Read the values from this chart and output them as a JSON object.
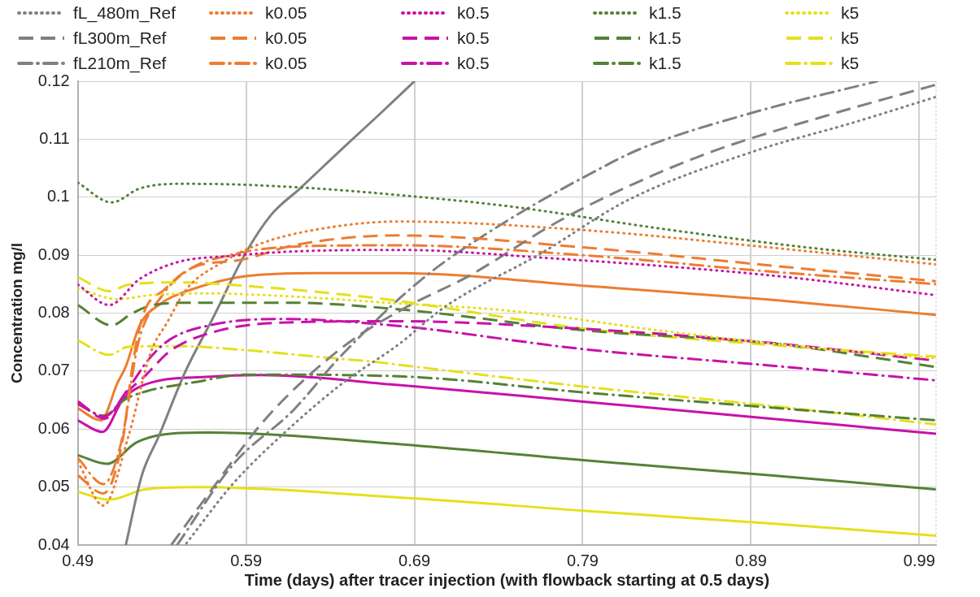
{
  "chart_data": {
    "type": "line",
    "xlabel": "Time (days) after tracer injection (with flowback starting at 0.5 days)",
    "ylabel": "Concentration mg/l",
    "xlim": [
      0.49,
      1.0
    ],
    "xticks": [
      0.49,
      0.59,
      0.69,
      0.79,
      0.89,
      0.99
    ],
    "ylim": [
      0.04,
      0.12
    ],
    "yticks": [
      0.04,
      0.05,
      0.06,
      0.07,
      0.08,
      0.09,
      0.1,
      0.11,
      0.12
    ],
    "grid": true,
    "legend": "top",
    "marker": "none",
    "series": [
      {
        "name": "fL_480m_Ref",
        "color": "#808080",
        "line_style": "dotted",
        "x": [
          0.5545,
          0.5823,
          0.6152,
          0.6477,
          0.6806,
          0.7092,
          0.7646,
          0.8176,
          0.8927,
          0.95,
          1.0
        ],
        "values": [
          0.0403,
          0.0506,
          0.06,
          0.068,
          0.0746,
          0.0813,
          0.0902,
          0.0996,
          0.108,
          0.1128,
          0.1173
        ]
      },
      {
        "name": "k0.05",
        "color": "#ed7d31",
        "line_style": "dotted",
        "x": [
          0.49,
          0.5052,
          0.52,
          0.5333,
          0.5431,
          0.5545,
          0.5761,
          0.5987,
          0.6315,
          0.6806,
          0.7916,
          0.902,
          1.0
        ],
        "values": [
          0.0544,
          0.0468,
          0.0587,
          0.0732,
          0.0784,
          0.0841,
          0.0888,
          0.092,
          0.0944,
          0.0958,
          0.0943,
          0.0913,
          0.0884
        ]
      },
      {
        "name": "k0.5",
        "color": "#c812a8",
        "line_style": "dotted",
        "x": [
          0.49,
          0.5087,
          0.5268,
          0.5494,
          0.5823,
          0.6152,
          0.6806,
          0.769,
          0.902,
          1.0
        ],
        "values": [
          0.0849,
          0.0814,
          0.0859,
          0.0888,
          0.0899,
          0.0906,
          0.0909,
          0.0895,
          0.0865,
          0.0831
        ]
      },
      {
        "name": "k1.5",
        "color": "#548235",
        "line_style": "dotted",
        "x": [
          0.49,
          0.5101,
          0.5268,
          0.5494,
          0.5823,
          0.6315,
          0.6791,
          0.7469,
          0.8358,
          0.9242,
          1.0
        ],
        "values": [
          0.1025,
          0.0991,
          0.1015,
          0.1023,
          0.1022,
          0.1015,
          0.1004,
          0.0984,
          0.0946,
          0.0913,
          0.0892
        ]
      },
      {
        "name": "k5",
        "color": "#e5e01c",
        "line_style": "dotted",
        "x": [
          0.49,
          0.5136,
          0.5333,
          0.5661,
          0.6152,
          0.6791,
          0.7469,
          0.8358,
          0.9242,
          1.0
        ],
        "values": [
          0.0843,
          0.0824,
          0.0831,
          0.0834,
          0.0829,
          0.0817,
          0.0804,
          0.077,
          0.0741,
          0.0722
        ]
      },
      {
        "name": "fL300m_Ref",
        "color": "#808080",
        "line_style": "dashed",
        "x": [
          0.5455,
          0.5661,
          0.602,
          0.6477,
          0.685,
          0.7223,
          0.7754,
          0.8196,
          0.8682,
          0.94,
          1.0
        ],
        "values": [
          0.04,
          0.0482,
          0.0619,
          0.0742,
          0.081,
          0.0864,
          0.0958,
          0.1022,
          0.108,
          0.1145,
          0.1194
        ]
      },
      {
        "name": "k0.05",
        "color": "#ed7d31",
        "line_style": "dashed",
        "x": [
          0.49,
          0.5052,
          0.517,
          0.522,
          0.5283,
          0.5416,
          0.5578,
          0.5873,
          0.62,
          0.6806,
          0.7916,
          0.902,
          1.0
        ],
        "values": [
          0.052,
          0.0489,
          0.0587,
          0.07,
          0.0793,
          0.0841,
          0.0878,
          0.0892,
          0.0918,
          0.0934,
          0.0913,
          0.0882,
          0.0855
        ]
      },
      {
        "name": "k0.5",
        "color": "#c812a8",
        "line_style": "dashed",
        "x": [
          0.49,
          0.506,
          0.518,
          0.53,
          0.545,
          0.574,
          0.615,
          0.68,
          0.79,
          0.9,
          1.0
        ],
        "values": [
          0.0648,
          0.0618,
          0.066,
          0.0692,
          0.0735,
          0.077,
          0.0784,
          0.0786,
          0.0773,
          0.0749,
          0.0718
        ]
      },
      {
        "name": "k1.5",
        "color": "#548235",
        "line_style": "dashed",
        "x": [
          0.49,
          0.5101,
          0.5219,
          0.5333,
          0.5578,
          0.6152,
          0.6791,
          0.7916,
          0.902,
          1.0
        ],
        "values": [
          0.0814,
          0.0779,
          0.0799,
          0.0813,
          0.0818,
          0.0818,
          0.0807,
          0.077,
          0.0748,
          0.0707
        ]
      },
      {
        "name": "k5",
        "color": "#e5e01c",
        "line_style": "dashed",
        "x": [
          0.49,
          0.5087,
          0.52,
          0.5494,
          0.5986,
          0.6644,
          0.6806,
          0.7916,
          0.902,
          1.0
        ],
        "values": [
          0.0862,
          0.0838,
          0.0849,
          0.0853,
          0.0845,
          0.0827,
          0.0821,
          0.0773,
          0.0745,
          0.0725
        ]
      },
      {
        "name": "fL210m_Ref",
        "color": "#808080",
        "line_style": "dashdot",
        "x": [
          0.549,
          0.5823,
          0.6182,
          0.645,
          0.6938,
          0.7444,
          0.7975,
          0.824,
          0.89,
          0.965
        ],
        "values": [
          0.04,
          0.0539,
          0.0633,
          0.0722,
          0.0857,
          0.0958,
          0.1045,
          0.1083,
          0.1145,
          0.12
        ]
      },
      {
        "name": "k0.05",
        "color": "#ed7d31",
        "line_style": "dashdot",
        "x": [
          0.49,
          0.5052,
          0.516,
          0.526,
          0.54,
          0.556,
          0.58,
          0.62,
          0.6806,
          0.79,
          0.9,
          1.0
        ],
        "values": [
          0.055,
          0.0505,
          0.058,
          0.075,
          0.083,
          0.0875,
          0.09,
          0.0915,
          0.0917,
          0.09,
          0.0872,
          0.085
        ]
      },
      {
        "name": "k0.5",
        "color": "#c812a8",
        "line_style": "dashdot",
        "x": [
          0.49,
          0.506,
          0.52,
          0.532,
          0.545,
          0.57,
          0.61,
          0.68,
          0.79,
          0.9,
          1.0
        ],
        "values": [
          0.0643,
          0.0622,
          0.067,
          0.072,
          0.0755,
          0.078,
          0.079,
          0.0778,
          0.0738,
          0.071,
          0.0684
        ]
      },
      {
        "name": "k1.5",
        "color": "#548235",
        "line_style": "dashdot",
        "x": [
          0.49,
          0.5052,
          0.5185,
          0.5317,
          0.5578,
          0.5907,
          0.6806,
          0.7916,
          0.902,
          1.0
        ],
        "values": [
          0.0645,
          0.0623,
          0.0652,
          0.0666,
          0.068,
          0.0694,
          0.0691,
          0.0663,
          0.0637,
          0.0615
        ]
      },
      {
        "name": "k5",
        "color": "#e5e01c",
        "line_style": "dashdot",
        "x": [
          0.49,
          0.5087,
          0.52,
          0.5494,
          0.5907,
          0.6315,
          0.6723,
          0.6806,
          0.7916,
          0.902,
          1.0
        ],
        "values": [
          0.0753,
          0.0728,
          0.0742,
          0.0743,
          0.0736,
          0.0725,
          0.0714,
          0.0711,
          0.0673,
          0.064,
          0.0608
        ]
      },
      {
        "color": "#808080",
        "line_style": "solid",
        "x": [
          0.5185,
          0.528,
          0.538,
          0.554,
          0.57,
          0.589,
          0.605,
          0.622,
          0.648,
          0.67,
          0.69
        ],
        "values": [
          0.04,
          0.052,
          0.0587,
          0.07,
          0.079,
          0.09,
          0.097,
          0.1015,
          0.1086,
          0.1145,
          0.12
        ]
      },
      {
        "color": "#ed7d31",
        "line_style": "solid",
        "x": [
          0.49,
          0.5037,
          0.5136,
          0.5185,
          0.5268,
          0.5396,
          0.5578,
          0.5907,
          0.6315,
          0.6806,
          0.7916,
          0.902,
          1.0
        ],
        "values": [
          0.0636,
          0.0615,
          0.068,
          0.0708,
          0.0779,
          0.0817,
          0.0841,
          0.0864,
          0.0869,
          0.0869,
          0.0847,
          0.0823,
          0.0797
        ]
      },
      {
        "color": "#c812a8",
        "line_style": "solid",
        "x": [
          0.49,
          0.5047,
          0.517,
          0.5333,
          0.5661,
          0.5986,
          0.6806,
          0.7916,
          0.902,
          1.0
        ],
        "values": [
          0.0615,
          0.0595,
          0.0652,
          0.068,
          0.069,
          0.0693,
          0.0676,
          0.0647,
          0.0618,
          0.0592
        ]
      },
      {
        "color": "#548235",
        "line_style": "solid",
        "x": [
          0.49,
          0.5072,
          0.5249,
          0.5416,
          0.5661,
          0.6806,
          0.7916,
          0.902,
          1.0
        ],
        "values": [
          0.0555,
          0.054,
          0.0577,
          0.0591,
          0.0594,
          0.0574,
          0.0546,
          0.052,
          0.0496
        ]
      },
      {
        "color": "#e5e01c",
        "line_style": "solid",
        "x": [
          0.49,
          0.5087,
          0.5298,
          0.5578,
          0.6806,
          0.7916,
          0.902,
          1.0
        ],
        "values": [
          0.0492,
          0.0478,
          0.0496,
          0.05,
          0.0482,
          0.0459,
          0.0437,
          0.0416
        ]
      }
    ]
  }
}
